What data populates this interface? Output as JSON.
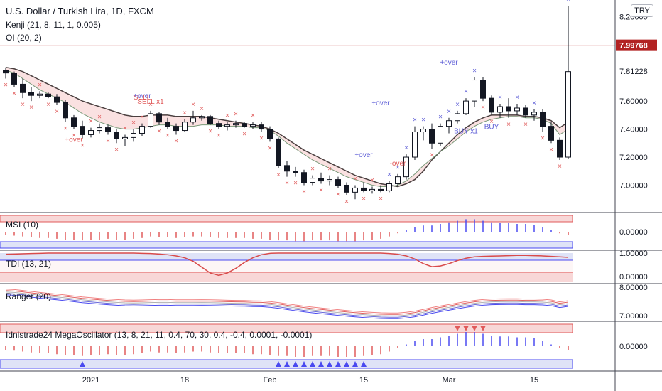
{
  "header": {
    "title": "U.S. Dollar / Turkish Lira, 1D, FXCM",
    "indicator_kenji": "Kenji (21, 8, 11, 1, 0.005)",
    "indicator_oi": "OI (20, 2)",
    "currency_button": "TRY"
  },
  "panes": {
    "msi": "MSI (10)",
    "tdi": "TDI (13, 21)",
    "ranger": "Ranger (20)",
    "mega": "Idnistrade24 MegaOscillator (13, 8, 21, 11, 0.4, 70, 30, 0.4, -0.4, 0.0001, -0.0001)"
  },
  "colors": {
    "up": "#ffffff",
    "down": "#131722",
    "bull_marker": "#5b5bd6",
    "bear_marker": "#e05a5a",
    "upper_fill": "#f8d7d7",
    "lower_fill": "#dfe3f7",
    "hline": "#b22222",
    "band_blue": "#4a4af0"
  },
  "chart_data": {
    "type": "candlestick",
    "title": "U.S. Dollar / Turkish Lira, 1D, FXCM",
    "y_ticks": [
      "8.20000",
      "8.00000",
      "7.81228",
      "7.60000",
      "7.40000",
      "7.20000",
      "7.00000"
    ],
    "price_line": 7.99768,
    "price_line_label": "7.99768",
    "x_ticks": [
      {
        "label": "2021",
        "index": 10
      },
      {
        "label": "18",
        "index": 21
      },
      {
        "label": "Feb",
        "index": 31
      },
      {
        "label": "15",
        "index": 42
      },
      {
        "label": "Mar",
        "index": 52
      },
      {
        "label": "15",
        "index": 62
      }
    ],
    "ohlc": [
      [
        7.82,
        7.84,
        7.76,
        7.8
      ],
      [
        7.8,
        7.81,
        7.7,
        7.72
      ],
      [
        7.72,
        7.76,
        7.62,
        7.66
      ],
      [
        7.66,
        7.7,
        7.6,
        7.64
      ],
      [
        7.64,
        7.67,
        7.62,
        7.65
      ],
      [
        7.65,
        7.66,
        7.62,
        7.63
      ],
      [
        7.63,
        7.65,
        7.57,
        7.59
      ],
      [
        7.59,
        7.61,
        7.45,
        7.48
      ],
      [
        7.48,
        7.5,
        7.4,
        7.42
      ],
      [
        7.42,
        7.46,
        7.33,
        7.36
      ],
      [
        7.36,
        7.41,
        7.34,
        7.39
      ],
      [
        7.39,
        7.44,
        7.37,
        7.41
      ],
      [
        7.41,
        7.43,
        7.36,
        7.38
      ],
      [
        7.38,
        7.4,
        7.3,
        7.33
      ],
      [
        7.33,
        7.36,
        7.28,
        7.34
      ],
      [
        7.34,
        7.4,
        7.31,
        7.37
      ],
      [
        7.37,
        7.44,
        7.35,
        7.42
      ],
      [
        7.42,
        7.53,
        7.41,
        7.51
      ],
      [
        7.51,
        7.52,
        7.43,
        7.45
      ],
      [
        7.45,
        7.48,
        7.4,
        7.42
      ],
      [
        7.42,
        7.44,
        7.36,
        7.39
      ],
      [
        7.39,
        7.47,
        7.38,
        7.45
      ],
      [
        7.45,
        7.53,
        7.43,
        7.48
      ],
      [
        7.48,
        7.5,
        7.46,
        7.49
      ],
      [
        7.49,
        7.5,
        7.43,
        7.44
      ],
      [
        7.44,
        7.46,
        7.4,
        7.42
      ],
      [
        7.42,
        7.45,
        7.39,
        7.43
      ],
      [
        7.43,
        7.46,
        7.41,
        7.44
      ],
      [
        7.44,
        7.45,
        7.41,
        7.42
      ],
      [
        7.42,
        7.45,
        7.4,
        7.43
      ],
      [
        7.43,
        7.45,
        7.38,
        7.4
      ],
      [
        7.4,
        7.42,
        7.31,
        7.33
      ],
      [
        7.33,
        7.34,
        7.12,
        7.14
      ],
      [
        7.14,
        7.17,
        7.06,
        7.1
      ],
      [
        7.1,
        7.13,
        7.06,
        7.09
      ],
      [
        7.09,
        7.11,
        7.0,
        7.02
      ],
      [
        7.02,
        7.07,
        7.0,
        7.05
      ],
      [
        7.05,
        7.09,
        7.01,
        7.03
      ],
      [
        7.03,
        7.07,
        7.0,
        7.04
      ],
      [
        7.04,
        7.06,
        6.98,
        7.0
      ],
      [
        7.0,
        7.02,
        6.93,
        6.95
      ],
      [
        6.95,
        7.0,
        6.9,
        6.98
      ],
      [
        6.98,
        7.02,
        6.95,
        6.96
      ],
      [
        6.96,
        6.99,
        6.94,
        6.97
      ],
      [
        6.97,
        7.0,
        6.95,
        6.96
      ],
      [
        6.96,
        7.03,
        6.95,
        7.01
      ],
      [
        7.01,
        7.08,
        6.99,
        7.06
      ],
      [
        7.06,
        7.22,
        7.04,
        7.2
      ],
      [
        7.2,
        7.42,
        7.18,
        7.38
      ],
      [
        7.38,
        7.42,
        7.32,
        7.4
      ],
      [
        7.4,
        7.44,
        7.26,
        7.3
      ],
      [
        7.3,
        7.44,
        7.28,
        7.42
      ],
      [
        7.42,
        7.48,
        7.37,
        7.46
      ],
      [
        7.46,
        7.53,
        7.44,
        7.51
      ],
      [
        7.51,
        7.62,
        7.5,
        7.6
      ],
      [
        7.6,
        7.77,
        7.56,
        7.75
      ],
      [
        7.75,
        7.77,
        7.6,
        7.62
      ],
      [
        7.62,
        7.64,
        7.5,
        7.52
      ],
      [
        7.52,
        7.58,
        7.48,
        7.56
      ],
      [
        7.56,
        7.62,
        7.48,
        7.53
      ],
      [
        7.53,
        7.58,
        7.5,
        7.55
      ],
      [
        7.55,
        7.57,
        7.48,
        7.5
      ],
      [
        7.5,
        7.54,
        7.46,
        7.52
      ],
      [
        7.52,
        7.54,
        7.38,
        7.42
      ],
      [
        7.42,
        7.45,
        7.3,
        7.32
      ],
      [
        7.32,
        7.34,
        7.18,
        7.2
      ],
      [
        7.2,
        8.28,
        7.19,
        7.81
      ]
    ],
    "overlay_upper": [
      7.84,
      7.83,
      7.81,
      7.78,
      7.75,
      7.72,
      7.69,
      7.66,
      7.63,
      7.6,
      7.58,
      7.56,
      7.54,
      7.52,
      7.5,
      7.49,
      7.49,
      7.5,
      7.5,
      7.5,
      7.49,
      7.49,
      7.49,
      7.49,
      7.48,
      7.47,
      7.46,
      7.45,
      7.44,
      7.43,
      7.42,
      7.4,
      7.37,
      7.33,
      7.29,
      7.25,
      7.22,
      7.19,
      7.16,
      7.13,
      7.1,
      7.07,
      7.05,
      7.03,
      7.01,
      7.0,
      6.99,
      7.01,
      7.04,
      7.1,
      7.18,
      7.24,
      7.3,
      7.36,
      7.41,
      7.45,
      7.48,
      7.5,
      7.5,
      7.5,
      7.5,
      7.49,
      7.49,
      7.48,
      7.46,
      7.41,
      7.45
    ],
    "overlay_lower": [
      7.82,
      7.8,
      7.76,
      7.72,
      7.68,
      7.65,
      7.62,
      7.59,
      7.55,
      7.51,
      7.48,
      7.45,
      7.43,
      7.41,
      7.4,
      7.4,
      7.41,
      7.42,
      7.43,
      7.43,
      7.42,
      7.42,
      7.42,
      7.43,
      7.43,
      7.43,
      7.42,
      7.42,
      7.42,
      7.41,
      7.41,
      7.39,
      7.35,
      7.3,
      7.26,
      7.22,
      7.18,
      7.15,
      7.12,
      7.09,
      7.06,
      7.04,
      7.02,
      7.0,
      6.99,
      6.99,
      7.0,
      7.03,
      7.08,
      7.14,
      7.19,
      7.24,
      7.28,
      7.33,
      7.38,
      7.42,
      7.45,
      7.47,
      7.48,
      7.49,
      7.49,
      7.48,
      7.48,
      7.47,
      7.44,
      7.36,
      7.4
    ],
    "annotations": [
      {
        "text": "+over",
        "index": 8,
        "price": 7.31,
        "color": "#e05a5a"
      },
      {
        "text": "+over",
        "index": 16,
        "price": 7.62,
        "color": "#5b5bd6"
      },
      {
        "text": "SELL",
        "index": 16,
        "price": 7.61,
        "color": "#e05a5a"
      },
      {
        "text": "SELL x1",
        "index": 17,
        "price": 7.58,
        "color": "#e05a5a"
      },
      {
        "text": "+over",
        "index": 42,
        "price": 7.2,
        "color": "#5b5bd6"
      },
      {
        "text": "+over",
        "index": 44,
        "price": 7.57,
        "color": "#5b5bd6"
      },
      {
        "text": "-over",
        "index": 46,
        "price": 7.14,
        "color": "#e05a5a"
      },
      {
        "text": "+over",
        "index": 52,
        "price": 7.86,
        "color": "#5b5bd6"
      },
      {
        "text": "BUY x1",
        "index": 54,
        "price": 7.37,
        "color": "#5b5bd6"
      },
      {
        "text": "BUY",
        "index": 57,
        "price": 7.4,
        "color": "#5b5bd6"
      }
    ],
    "msi": {
      "y_ticks": [
        "0.00000"
      ],
      "values": [
        -0.2,
        -0.25,
        -0.3,
        -0.35,
        -0.4,
        -0.4,
        -0.45,
        -0.5,
        -0.5,
        -0.55,
        -0.5,
        -0.5,
        -0.45,
        -0.5,
        -0.5,
        -0.45,
        -0.4,
        -0.3,
        -0.35,
        -0.35,
        -0.4,
        -0.35,
        -0.3,
        -0.3,
        -0.35,
        -0.4,
        -0.4,
        -0.4,
        -0.4,
        -0.45,
        -0.45,
        -0.5,
        -0.55,
        -0.55,
        -0.6,
        -0.6,
        -0.55,
        -0.55,
        -0.55,
        -0.6,
        -0.6,
        -0.6,
        -0.55,
        -0.5,
        -0.45,
        -0.3,
        -0.1,
        0.1,
        0.3,
        0.4,
        0.4,
        0.5,
        0.6,
        0.7,
        0.8,
        0.8,
        0.7,
        0.6,
        0.55,
        0.55,
        0.5,
        0.5,
        0.45,
        0.3,
        0.1,
        -0.1,
        -0.2
      ]
    },
    "tdi": {
      "y_ticks": [
        "1.00000",
        "0.00000"
      ],
      "values": [
        0.95,
        0.96,
        0.97,
        0.98,
        0.99,
        1.0,
        1.0,
        1.0,
        1.0,
        1.0,
        1.0,
        1.0,
        1.0,
        1.0,
        1.0,
        1.0,
        0.99,
        0.98,
        0.96,
        0.93,
        0.88,
        0.8,
        0.65,
        0.4,
        0.15,
        0.05,
        0.15,
        0.35,
        0.6,
        0.8,
        0.93,
        0.99,
        1.0,
        1.0,
        1.0,
        1.0,
        1.0,
        1.0,
        1.0,
        1.0,
        1.0,
        1.0,
        1.0,
        1.0,
        1.0,
        0.98,
        0.95,
        0.88,
        0.75,
        0.55,
        0.42,
        0.45,
        0.55,
        0.68,
        0.78,
        0.84,
        0.86,
        0.87,
        0.88,
        0.89,
        0.9,
        0.9,
        0.89,
        0.88,
        0.86,
        0.84,
        0.82
      ]
    },
    "ranger": {
      "y_ticks": [
        "8.00000",
        "7.00000"
      ]
    },
    "mega": {
      "y_ticks": [
        "0.00000"
      ]
    }
  }
}
